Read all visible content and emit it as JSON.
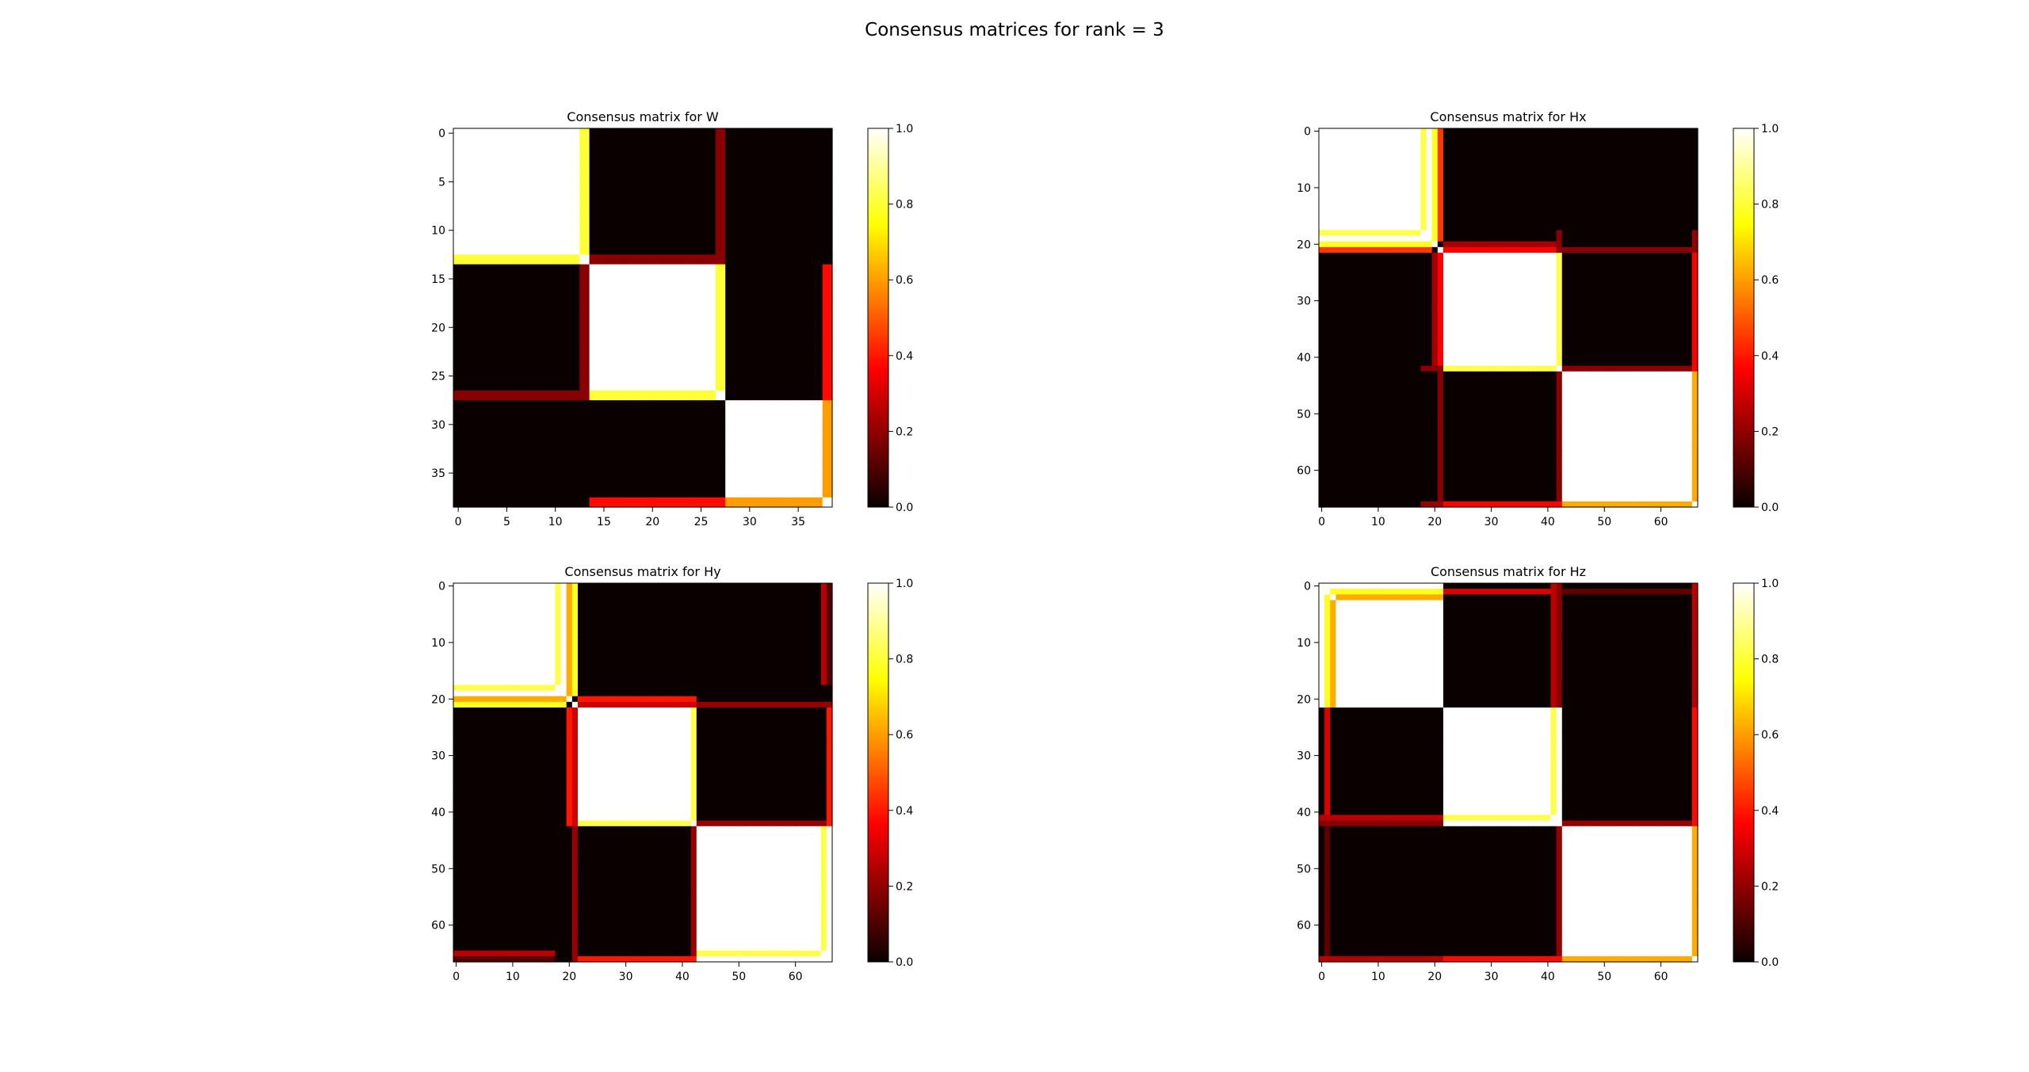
{
  "figure": {
    "title": "Consensus matrices for rank = 3"
  },
  "colormap": {
    "name": "hot",
    "stops": [
      "#0a0000",
      "#ff0000",
      "#ffff00",
      "#ffffff"
    ]
  },
  "chart_data": [
    {
      "type": "heatmap",
      "title": "Consensus matrix for W",
      "n": 39,
      "xticks": [
        0,
        5,
        10,
        15,
        20,
        25,
        30,
        35
      ],
      "yticks": [
        0,
        5,
        10,
        15,
        20,
        25,
        30,
        35
      ],
      "zlim": [
        0,
        1
      ],
      "colorbar_ticks": [
        "0.0",
        "0.2",
        "0.4",
        "0.6",
        "0.8",
        "1.0"
      ],
      "blocks": [
        {
          "start": 0,
          "end": 13,
          "value": 1.0
        },
        {
          "start": 14,
          "end": 27,
          "value": 1.0
        },
        {
          "start": 28,
          "end": 38,
          "value": 1.0
        }
      ],
      "bridges": [
        {
          "index": 13,
          "to": [
            0,
            13
          ],
          "value": 0.8
        },
        {
          "index": 13,
          "to": [
            14,
            27
          ],
          "value": 0.18
        },
        {
          "index": 27,
          "to": [
            14,
            27
          ],
          "value": 0.8
        },
        {
          "index": 27,
          "to": [
            0,
            13
          ],
          "value": 0.18
        },
        {
          "index": 38,
          "to": [
            28,
            38
          ],
          "value": 0.6
        },
        {
          "index": 38,
          "to": [
            14,
            27
          ],
          "value": 0.38
        }
      ]
    },
    {
      "type": "heatmap",
      "title": "Consensus matrix for Hx",
      "n": 67,
      "xticks": [
        0,
        10,
        20,
        30,
        40,
        50,
        60
      ],
      "yticks": [
        0,
        10,
        20,
        30,
        40,
        50,
        60
      ],
      "zlim": [
        0,
        1
      ],
      "colorbar_ticks": [
        "0.0",
        "0.2",
        "0.4",
        "0.6",
        "0.8",
        "1.0"
      ],
      "blocks": [
        {
          "start": 0,
          "end": 19,
          "value": 1.0
        },
        {
          "start": 22,
          "end": 42,
          "value": 1.0
        },
        {
          "start": 43,
          "end": 66,
          "value": 1.0
        }
      ],
      "bridges": [
        {
          "index": 18,
          "to": [
            0,
            17
          ],
          "value": 0.82
        },
        {
          "index": 20,
          "to": [
            0,
            19
          ],
          "value": 0.78
        },
        {
          "index": 21,
          "to": [
            0,
            19
          ],
          "value": 0.45
        },
        {
          "index": 20,
          "to": [
            22,
            42
          ],
          "value": 0.22
        },
        {
          "index": 21,
          "to": [
            22,
            42
          ],
          "value": 0.35
        },
        {
          "index": 21,
          "to": [
            43,
            66
          ],
          "value": 0.18
        },
        {
          "index": 42,
          "to": [
            22,
            41
          ],
          "value": 0.82
        },
        {
          "index": 42,
          "to": [
            43,
            66
          ],
          "value": 0.18
        },
        {
          "index": 42,
          "to": [
            18,
            21
          ],
          "value": 0.18
        },
        {
          "index": 66,
          "to": [
            43,
            65
          ],
          "value": 0.62
        },
        {
          "index": 66,
          "to": [
            22,
            42
          ],
          "value": 0.35
        },
        {
          "index": 66,
          "to": [
            18,
            21
          ],
          "value": 0.2
        }
      ]
    },
    {
      "type": "heatmap",
      "title": "Consensus matrix for Hy",
      "n": 67,
      "xticks": [
        0,
        10,
        20,
        30,
        40,
        50,
        60
      ],
      "yticks": [
        0,
        10,
        20,
        30,
        40,
        50,
        60
      ],
      "zlim": [
        0,
        1
      ],
      "colorbar_ticks": [
        "0.0",
        "0.2",
        "0.4",
        "0.6",
        "0.8",
        "1.0"
      ],
      "blocks": [
        {
          "start": 0,
          "end": 19,
          "value": 1.0
        },
        {
          "start": 22,
          "end": 42,
          "value": 1.0
        },
        {
          "start": 43,
          "end": 66,
          "value": 1.0
        }
      ],
      "bridges": [
        {
          "index": 18,
          "to": [
            0,
            17
          ],
          "value": 0.82
        },
        {
          "index": 20,
          "to": [
            0,
            19
          ],
          "value": 0.62
        },
        {
          "index": 21,
          "to": [
            0,
            19
          ],
          "value": 0.78
        },
        {
          "index": 20,
          "to": [
            22,
            42
          ],
          "value": 0.4
        },
        {
          "index": 21,
          "to": [
            22,
            42
          ],
          "value": 0.28
        },
        {
          "index": 21,
          "to": [
            43,
            66
          ],
          "value": 0.2
        },
        {
          "index": 42,
          "to": [
            22,
            41
          ],
          "value": 0.82
        },
        {
          "index": 42,
          "to": [
            43,
            66
          ],
          "value": 0.2
        },
        {
          "index": 65,
          "to": [
            43,
            64
          ],
          "value": 0.82
        },
        {
          "index": 65,
          "to": [
            0,
            17
          ],
          "value": 0.25
        },
        {
          "index": 66,
          "to": [
            22,
            42
          ],
          "value": 0.4
        },
        {
          "index": 66,
          "to": [
            0,
            17
          ],
          "value": 0.1
        }
      ]
    },
    {
      "type": "heatmap",
      "title": "Consensus matrix for Hz",
      "n": 67,
      "xticks": [
        0,
        10,
        20,
        30,
        40,
        50,
        60
      ],
      "yticks": [
        0,
        10,
        20,
        30,
        40,
        50,
        60
      ],
      "zlim": [
        0,
        1
      ],
      "colorbar_ticks": [
        "0.0",
        "0.2",
        "0.4",
        "0.6",
        "0.8",
        "1.0"
      ],
      "blocks": [
        {
          "start": 0,
          "end": 21,
          "value": 1.0
        },
        {
          "start": 22,
          "end": 42,
          "value": 1.0
        },
        {
          "start": 43,
          "end": 66,
          "value": 1.0
        }
      ],
      "bridges": [
        {
          "index": 1,
          "to": [
            2,
            21
          ],
          "value": 0.78
        },
        {
          "index": 2,
          "to": [
            3,
            21
          ],
          "value": 0.62
        },
        {
          "index": 1,
          "to": [
            22,
            42
          ],
          "value": 0.3
        },
        {
          "index": 1,
          "to": [
            43,
            66
          ],
          "value": 0.12
        },
        {
          "index": 41,
          "to": [
            22,
            40
          ],
          "value": 0.82
        },
        {
          "index": 41,
          "to": [
            0,
            21
          ],
          "value": 0.25
        },
        {
          "index": 42,
          "to": [
            43,
            66
          ],
          "value": 0.2
        },
        {
          "index": 42,
          "to": [
            0,
            21
          ],
          "value": 0.18
        },
        {
          "index": 66,
          "to": [
            43,
            65
          ],
          "value": 0.62
        },
        {
          "index": 66,
          "to": [
            22,
            42
          ],
          "value": 0.38
        },
        {
          "index": 66,
          "to": [
            0,
            21
          ],
          "value": 0.25
        }
      ]
    }
  ]
}
